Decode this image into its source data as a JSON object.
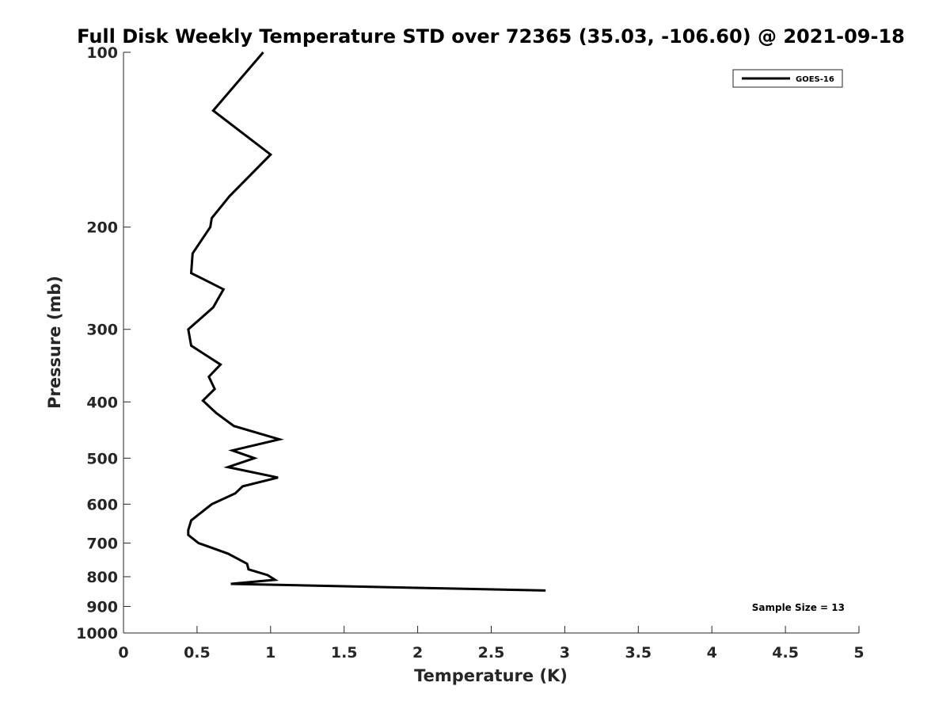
{
  "chart_data": {
    "type": "line",
    "title": "Full Disk Weekly Temperature STD over 72365 (35.03, -106.60) @ 2021-09-18",
    "xlabel": "Temperature (K)",
    "ylabel": "Pressure (mb)",
    "xlim": [
      0,
      5
    ],
    "ylim": [
      100,
      1000
    ],
    "y_scale": "log",
    "y_reversed": true,
    "x_ticks": [
      "0",
      "0.5",
      "1",
      "1.5",
      "2",
      "2.5",
      "3",
      "3.5",
      "4",
      "4.5",
      "5"
    ],
    "x_tick_values": [
      0,
      0.5,
      1,
      1.5,
      2,
      2.5,
      3,
      3.5,
      4,
      4.5,
      5
    ],
    "y_ticks": [
      "100",
      "200",
      "300",
      "400",
      "500",
      "600",
      "700",
      "800",
      "900",
      "1000"
    ],
    "y_tick_values": [
      100,
      200,
      300,
      400,
      500,
      600,
      700,
      800,
      900,
      1000
    ],
    "grid": false,
    "legend_position": "top-right",
    "annotation": "Sample Size = 13",
    "series": [
      {
        "name": "GOES-16",
        "color": "#000000",
        "points": [
          [
            0.95,
            100
          ],
          [
            0.61,
            126
          ],
          [
            1.0,
            150
          ],
          [
            0.72,
            177
          ],
          [
            0.6,
            193
          ],
          [
            0.59,
            200
          ],
          [
            0.47,
            222
          ],
          [
            0.46,
            240
          ],
          [
            0.68,
            256
          ],
          [
            0.61,
            275
          ],
          [
            0.44,
            300
          ],
          [
            0.46,
            320
          ],
          [
            0.66,
            345
          ],
          [
            0.58,
            362
          ],
          [
            0.62,
            380
          ],
          [
            0.54,
            398
          ],
          [
            0.63,
            418
          ],
          [
            0.75,
            440
          ],
          [
            1.06,
            464
          ],
          [
            0.74,
            485
          ],
          [
            0.89,
            500
          ],
          [
            0.71,
            518
          ],
          [
            1.05,
            540
          ],
          [
            0.81,
            559
          ],
          [
            0.76,
            575
          ],
          [
            0.6,
            600
          ],
          [
            0.46,
            640
          ],
          [
            0.44,
            665
          ],
          [
            0.44,
            678
          ],
          [
            0.51,
            700
          ],
          [
            0.71,
            730
          ],
          [
            0.84,
            760
          ],
          [
            0.85,
            777
          ],
          [
            0.98,
            795
          ],
          [
            1.03,
            810
          ],
          [
            0.73,
            823
          ],
          [
            2.87,
            845
          ]
        ]
      }
    ]
  }
}
